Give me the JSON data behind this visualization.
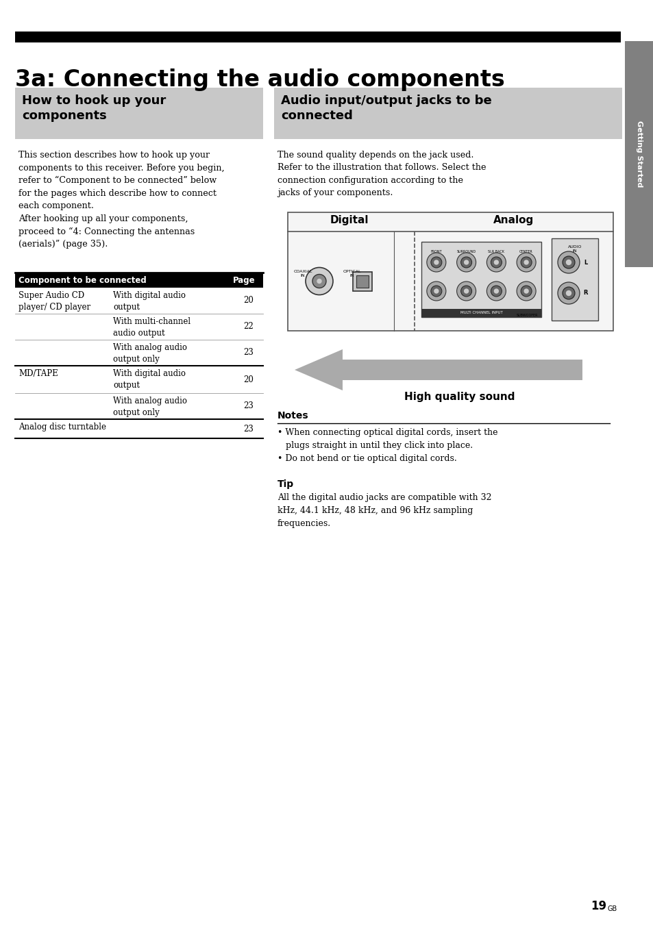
{
  "title": "3a: Connecting the audio components",
  "title_bar_color": "#000000",
  "title_text_color": "#000000",
  "title_fontsize": 24,
  "page_bg": "#ffffff",
  "sidebar_color": "#808080",
  "sidebar_text": "Getting Started",
  "sidebar_text_color": "#ffffff",
  "left_box_title": "How to hook up your\ncomponents",
  "left_box_bg": "#c8c8c8",
  "left_box_title_color": "#000000",
  "right_box_title": "Audio input/output jacks to be\nconnected",
  "right_box_bg": "#c8c8c8",
  "right_box_title_color": "#000000",
  "left_body_text": "This section describes how to hook up your\ncomponents to this receiver. Before you begin,\nrefer to “Component to be connected” below\nfor the pages which describe how to connect\neach component.\nAfter hooking up all your components,\nproceed to “4: Connecting the antennas\n(aerials)” (page 35).",
  "right_body_text": "The sound quality depends on the jack used.\nRefer to the illustration that follows. Select the\nconnection configuration according to the\njacks of your components.",
  "table_header": [
    "Component to be connected",
    "Page"
  ],
  "table_header_bg": "#000000",
  "table_header_text_color": "#ffffff",
  "table_rows": [
    [
      "Super Audio CD\nplayer/ CD player",
      "With digital audio\noutput",
      "20"
    ],
    [
      "",
      "With multi-channel\naudio output",
      "22"
    ],
    [
      "",
      "With analog audio\noutput only",
      "23"
    ],
    [
      "MD/TAPE",
      "With digital audio\noutput",
      "20"
    ],
    [
      "",
      "With analog audio\noutput only",
      "23"
    ],
    [
      "Analog disc turntable",
      "",
      "23"
    ]
  ],
  "notes_title": "Notes",
  "notes_text": "• When connecting optical digital cords, insert the\n   plugs straight in until they click into place.\n• Do not bend or tie optical digital cords.",
  "tip_title": "Tip",
  "tip_text": "All the digital audio jacks are compatible with 32\nkHz, 44.1 kHz, 48 kHz, and 96 kHz sampling\nfrequencies.",
  "high_quality_label": "High quality sound",
  "digital_label": "Digital",
  "analog_label": "Analog",
  "page_number": "19",
  "page_suffix": "GB"
}
